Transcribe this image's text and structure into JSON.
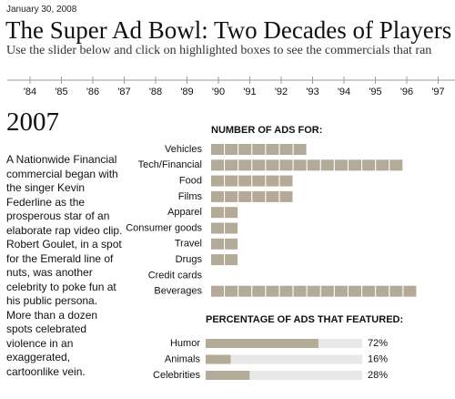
{
  "header": {
    "date": "January 30, 2008",
    "title": "The Super Ad Bowl: Two Decades of Players",
    "subtitle": "Use the slider below and click on highlighted boxes to see the commercials that ran"
  },
  "slider": {
    "labels": [
      "'84",
      "'85",
      "'86",
      "'87",
      "'88",
      "'89",
      "'90",
      "'91",
      "'92",
      "'93",
      "'94",
      "'95",
      "'96",
      "'97"
    ]
  },
  "year": "2007",
  "description": "A Nationwide Financial commercial began with the singer Kevin Federline as the prosperous star of an elaborate rap video clip. Robert Goulet, in a spot for the Emerald line of nuts, was another celebrity to poke fun at his public persona. More than a dozen spots celebrated violence in an exaggerated, cartoonlike vein.",
  "ads_chart": {
    "title": "NUMBER OF ADS FOR:",
    "categories": [
      "Vehicles",
      "Tech/Financial",
      "Food",
      "Films",
      "Apparel",
      "Consumer goods",
      "Travel",
      "Drugs",
      "Credit cards",
      "Beverages"
    ],
    "values": [
      7,
      14,
      6,
      6,
      2,
      2,
      2,
      2,
      0,
      15
    ],
    "color": "#b3aa98"
  },
  "percent_chart": {
    "title": "PERCENTAGE OF ADS THAT FEATURED:",
    "categories": [
      "Humor",
      "Animals",
      "Celebrities"
    ],
    "values": [
      72,
      16,
      28
    ],
    "value_labels": [
      "72%",
      "16%",
      "28%"
    ],
    "color": "#b3aa98",
    "track_color": "#e8e8e8"
  }
}
